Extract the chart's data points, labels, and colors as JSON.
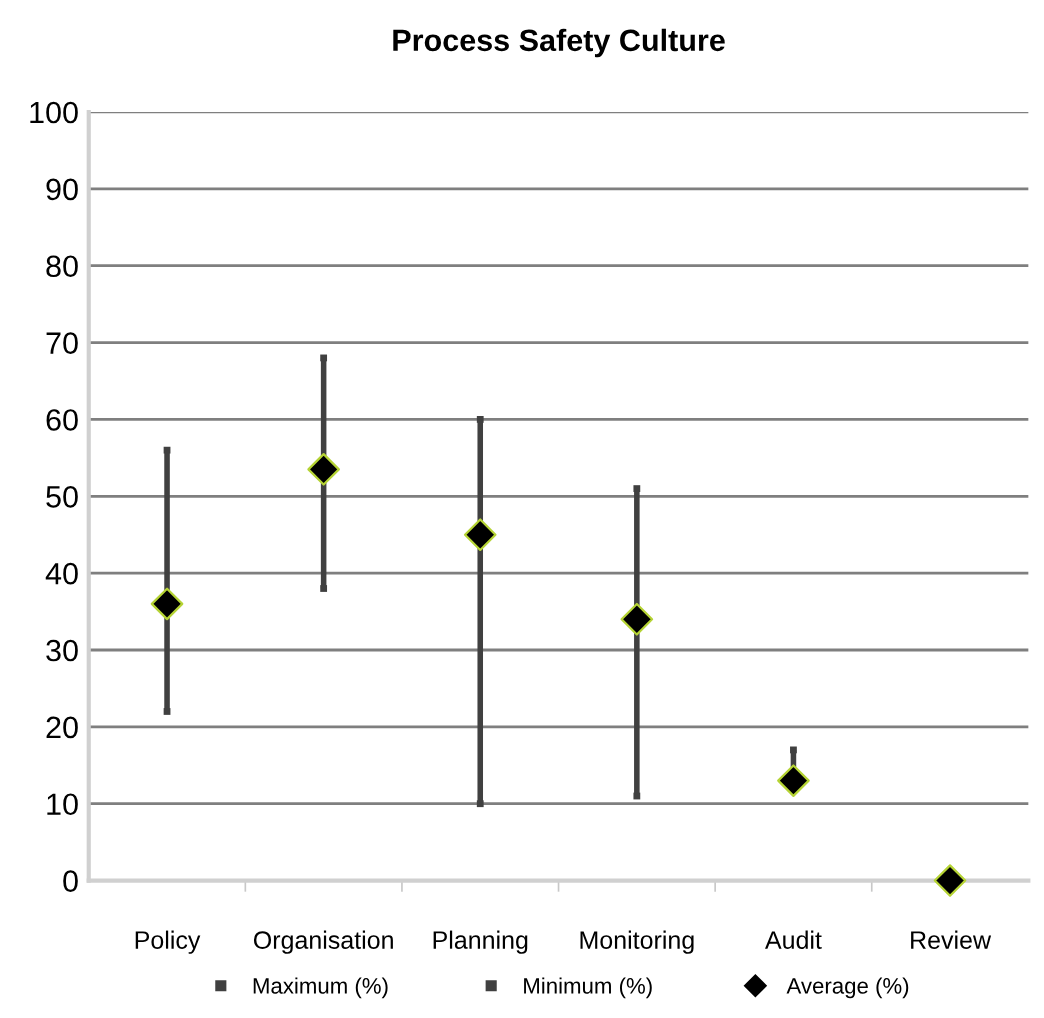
{
  "chart_data": {
    "type": "scatter",
    "title": "Process Safety Culture",
    "categories": [
      "Policy",
      "Organisation",
      "Planning",
      "Monitoring",
      "Audit",
      "Review"
    ],
    "series": [
      {
        "name": "Maximum (%)",
        "color": "#404040",
        "marker": "square",
        "values": [
          56,
          68,
          60,
          51,
          17,
          null
        ]
      },
      {
        "name": "Minimum (%)",
        "color": "#404040",
        "marker": "square",
        "values": [
          22,
          38,
          10,
          11,
          null,
          null
        ]
      },
      {
        "name": "Average (%)",
        "color": "#000000",
        "marker": "diamond",
        "values": [
          36,
          53.5,
          45,
          34,
          13,
          0
        ]
      }
    ],
    "line_style": "solid",
    "ylim": [
      0,
      100
    ],
    "yticks": [
      0,
      10,
      20,
      30,
      40,
      50,
      60,
      70,
      80,
      90,
      100
    ],
    "grid": "y",
    "legend": "bottom"
  }
}
